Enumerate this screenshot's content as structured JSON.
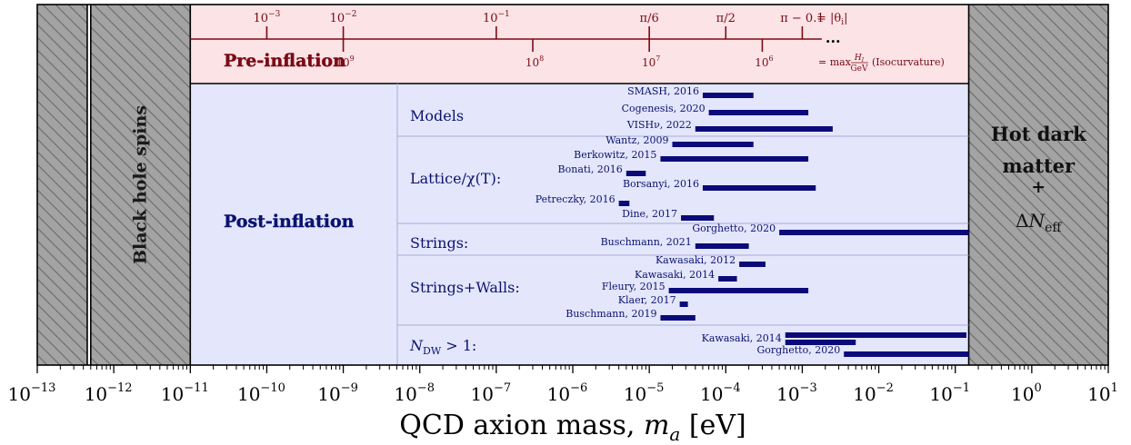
{
  "chart_data": {
    "type": "bar",
    "xscale": "log",
    "xlim": [
      1e-13,
      10
    ],
    "xlabel_main": "QCD axion mass, ",
    "xlabel_var": "m",
    "xlabel_sub": "a",
    "xlabel_unit": " [eV]",
    "xtick_exponents": [
      -13,
      -12,
      -11,
      -10,
      -9,
      -8,
      -7,
      -6,
      -5,
      -4,
      -3,
      -2,
      -1,
      0,
      1
    ],
    "xtick_base": "10",
    "grid": false,
    "regions": {
      "black_hole_label": "Black hole spins",
      "black_hole_band_left": [
        1e-13,
        4.5e-13
      ],
      "black_hole_band_right": [
        5e-13,
        1e-11
      ],
      "hot_dm_range": [
        0.15,
        10
      ],
      "hot_dm_line1": "Hot dark",
      "hot_dm_line2": "matter",
      "hot_dm_line3": "+",
      "hot_dm_line4_prefix": "ΔN",
      "hot_dm_line4_sub": "eff"
    },
    "pre_inflation": {
      "label": "Pre-inflation",
      "theta_ticks": [
        {
          "label": "10",
          "sup": "−3",
          "mass": 1e-10
        },
        {
          "label": "10",
          "sup": "−2",
          "mass": 1e-09
        },
        {
          "label": "10",
          "sup": "−1",
          "mass": 1e-07
        },
        {
          "label": "π/6",
          "sup": "",
          "mass": 1e-05
        },
        {
          "label": "π/2",
          "sup": "",
          "mass": 0.0001
        },
        {
          "label": "π − 0.1",
          "sup": "",
          "mass": 0.001
        }
      ],
      "theta_suffix": "= |θ",
      "theta_suffix_sub": "i",
      "theta_suffix_end": "|",
      "hi_ticks": [
        {
          "label": "10",
          "sup": "9",
          "mass": 1e-09
        },
        {
          "label": "10",
          "sup": "8",
          "mass": 3e-07
        },
        {
          "label": "10",
          "sup": "7",
          "mass": 1e-05
        },
        {
          "label": "10",
          "sup": "6",
          "mass": 0.0003
        }
      ],
      "axis_end_mass": 0.0018,
      "ellipsis": "...",
      "hi_suffix_pre": "= max",
      "hi_frac_num": "H",
      "hi_frac_num_sub": "I",
      "hi_frac_den": "GeV",
      "hi_suffix_post": "(Isocurvature)"
    },
    "post_inflation": {
      "label": "Post-inflation",
      "range": [
        1e-11,
        0.15
      ],
      "groups": [
        {
          "name": "Models",
          "estimates": [
            {
              "label": "SMASH, 2016",
              "xmin": 5e-05,
              "xmax": 0.00023
            },
            {
              "label": "Cogenesis, 2020",
              "xmin": 6e-05,
              "xmax": 0.0012
            },
            {
              "label": "VISHν, 2022",
              "xmin": 4e-05,
              "xmax": 0.0025
            }
          ]
        },
        {
          "name": "Lattice/χ(T):",
          "estimates": [
            {
              "label": "Wantz, 2009",
              "xmin": 2e-05,
              "xmax": 0.00023
            },
            {
              "label": "Berkowitz, 2015",
              "xmin": 1.4e-05,
              "xmax": 0.0012
            },
            {
              "label": "Bonati, 2016",
              "xmin": 5e-06,
              "xmax": 9e-06
            },
            {
              "label": "Borsanyi, 2016",
              "xmin": 5e-05,
              "xmax": 0.0015
            },
            {
              "label": "Petreczky, 2016",
              "xmin": 4e-06,
              "xmax": 5.5e-06
            },
            {
              "label": "Dine, 2017",
              "xmin": 2.6e-05,
              "xmax": 7e-05
            }
          ]
        },
        {
          "name": "Strings:",
          "estimates": [
            {
              "label": "Gorghetto, 2020",
              "xmin": 0.0005,
              "xmax": 0.15
            },
            {
              "label": "Buschmann, 2021",
              "xmin": 4e-05,
              "xmax": 0.0002
            }
          ]
        },
        {
          "name": "Strings+Walls:",
          "estimates": [
            {
              "label": "Kawasaki, 2012",
              "xmin": 0.00015,
              "xmax": 0.00033
            },
            {
              "label": "Kawasaki, 2014",
              "xmin": 8e-05,
              "xmax": 0.00014
            },
            {
              "label": "Fleury, 2015",
              "xmin": 1.8e-05,
              "xmax": 0.0012
            },
            {
              "label": "Klaer, 2017",
              "xmin": 2.5e-05,
              "xmax": 3.2e-05
            },
            {
              "label": "Buschmann, 2019",
              "xmin": 1.4e-05,
              "xmax": 4e-05
            }
          ]
        },
        {
          "name_var": "N",
          "name_sub": "DW",
          "name_rest": " > 1:",
          "estimates": [
            {
              "label": "",
              "xmin": 0.0006,
              "xmax": 0.14
            },
            {
              "label": "Kawasaki, 2014",
              "xmin": 0.0006,
              "xmax": 0.005
            },
            {
              "label": "Gorghetto, 2020",
              "xmin": 0.0035,
              "xmax": 0.15
            }
          ]
        }
      ]
    },
    "colors": {
      "bar": "#0a0a7a",
      "pre_bg": "#fbe3e6",
      "pre_text": "#7a0a14",
      "post_bg": "#e4e6fb",
      "post_text": "#0a1370",
      "hatch_bg": "#a3a3a3",
      "divider": "#a9acd8"
    }
  }
}
